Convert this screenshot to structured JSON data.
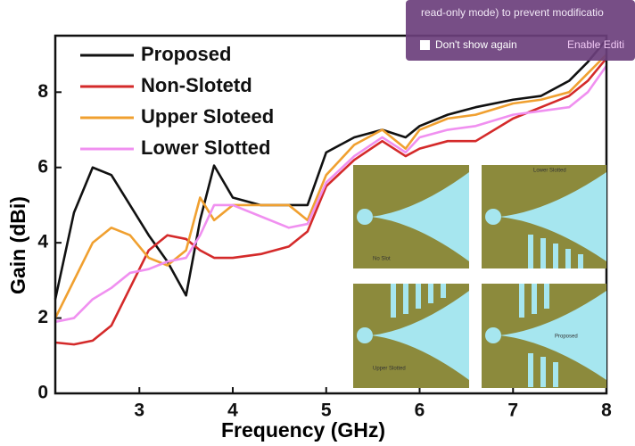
{
  "chart_data": {
    "type": "line",
    "x_label": "Frequency (GHz)",
    "y_label": "Gain (dBi)",
    "x": [
      2.1,
      2.3,
      2.5,
      2.7,
      2.9,
      3.1,
      3.3,
      3.5,
      3.65,
      3.8,
      4.0,
      4.3,
      4.6,
      4.8,
      5.0,
      5.3,
      5.6,
      5.85,
      6.0,
      6.3,
      6.6,
      7.0,
      7.3,
      7.6,
      7.8,
      8.0
    ],
    "series": [
      {
        "name": "Proposed",
        "color": "#111111",
        "values": [
          2.5,
          4.8,
          6.0,
          5.8,
          5.0,
          4.2,
          3.5,
          2.6,
          4.6,
          6.05,
          5.2,
          5.0,
          5.0,
          5.0,
          6.4,
          6.8,
          7.0,
          6.8,
          7.1,
          7.4,
          7.6,
          7.8,
          7.9,
          8.3,
          8.8,
          9.4
        ]
      },
      {
        "name": "Non-Slotetd",
        "color": "#d42a2a",
        "values": [
          1.35,
          1.3,
          1.4,
          1.8,
          2.8,
          3.8,
          4.2,
          4.1,
          3.8,
          3.6,
          3.6,
          3.7,
          3.9,
          4.3,
          5.5,
          6.2,
          6.7,
          6.3,
          6.5,
          6.7,
          6.7,
          7.3,
          7.6,
          7.9,
          8.3,
          8.9
        ]
      },
      {
        "name": "Upper Sloteed",
        "color": "#f0a030",
        "values": [
          2.0,
          3.0,
          4.0,
          4.4,
          4.2,
          3.6,
          3.4,
          3.8,
          5.2,
          4.6,
          5.0,
          5.0,
          5.0,
          4.6,
          5.8,
          6.6,
          7.0,
          6.5,
          7.0,
          7.3,
          7.4,
          7.7,
          7.8,
          8.0,
          8.5,
          9.0
        ]
      },
      {
        "name": "Lower Slotted",
        "color": "#f090f0",
        "values": [
          1.9,
          2.0,
          2.5,
          2.8,
          3.2,
          3.3,
          3.5,
          3.6,
          4.2,
          5.0,
          5.0,
          4.7,
          4.4,
          4.5,
          5.6,
          6.3,
          6.8,
          6.4,
          6.8,
          7.0,
          7.1,
          7.4,
          7.5,
          7.6,
          8.0,
          8.7
        ]
      }
    ],
    "xlim": [
      2.1,
      8
    ],
    "ylim": [
      0,
      9.5
    ],
    "xticks": [
      3,
      4,
      5,
      6,
      7,
      8
    ],
    "yticks": [
      0,
      2,
      4,
      6,
      8
    ],
    "legend": "upper left",
    "insets": [
      "No Slot",
      "Lower Slotted",
      "Upper Slotted",
      "Proposed"
    ]
  },
  "banner": {
    "message": "read-only mode) to prevent modificatio",
    "checkbox": "Don't show again",
    "button": "Enable Editi"
  }
}
